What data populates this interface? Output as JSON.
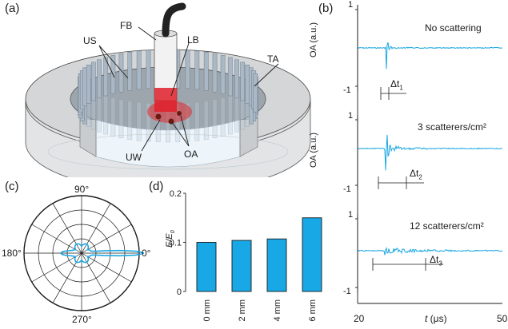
{
  "panels": {
    "a": {
      "label": "(a)",
      "annotations": [
        "FB",
        "LB",
        "US",
        "TA",
        "UW",
        "OA"
      ]
    },
    "b": {
      "label": "(b)",
      "traces": [
        {
          "title": "No scattering",
          "ylabel": "OA (a.u.)",
          "yticks": [
            "1",
            "-1"
          ],
          "dt_label": "Δt",
          "dt_sub": "1"
        },
        {
          "title": "3 scatterers/cm²",
          "ylabel": "OA (a.u.)",
          "yticks": [
            "1",
            "-1"
          ],
          "dt_label": "Δt",
          "dt_sub": "2"
        },
        {
          "title": "12 scatterers/cm²",
          "ylabel": "OA (a.u.)",
          "yticks": [
            "1",
            "-1"
          ],
          "dt_label": "Δt",
          "dt_sub": "3"
        }
      ],
      "xticks": [
        "20",
        "50"
      ],
      "xlabel_var": "t",
      "xlabel_unit": " (μs)"
    },
    "c": {
      "label": "(c)",
      "angles": [
        "90°",
        "180°",
        "0°",
        "270°"
      ]
    },
    "d": {
      "label": "(d)",
      "ylabel_num": "E",
      "ylabel_den": "E",
      "ylabel_sub": "0"
    }
  },
  "chart_data": [
    {
      "type": "bar",
      "panel": "d",
      "categories": [
        "0 mm",
        "2 mm",
        "4 mm",
        "6 mm"
      ],
      "values": [
        0.1,
        0.104,
        0.107,
        0.15
      ],
      "yticks": [
        "0.2",
        "0.1",
        "0"
      ],
      "ylim": [
        0,
        0.2
      ],
      "color": "#18a8e6"
    }
  ],
  "colors": {
    "signal": "#1aa7e0",
    "bar": "#18a8e6",
    "laser": "#e0202a",
    "axis": "#1a1a1a"
  }
}
